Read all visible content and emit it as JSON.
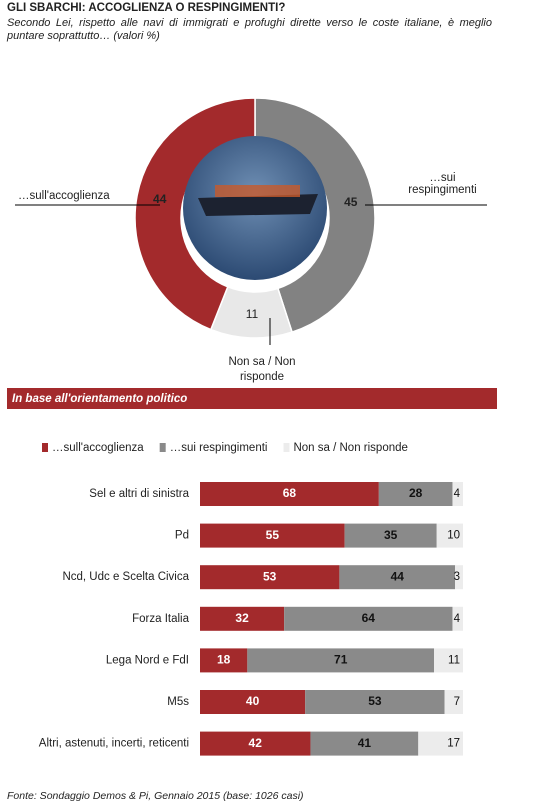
{
  "title": "GLI SBARCHI: ACCOGLIENZA  O RESPINGIMENTI?",
  "subtitle": "Secondo Lei, rispetto alle navi di immigrati e profughi dirette verso le coste italiane, è meglio puntare soprattutto… (valori %)",
  "source": "Fonte: Sondaggio Demos & Pi, Gennaio 2015 (base: 1026 casi)",
  "chart_data": [
    {
      "type": "donut",
      "categories": [
        "…sull'accoglienza",
        "…sui respingimenti",
        "Non sa / Non risponde"
      ],
      "values": [
        44,
        45,
        11
      ],
      "colors": [
        "#a32a2c",
        "#828282",
        "#e8e8e8"
      ]
    },
    {
      "type": "stacked-bar",
      "title": "In base all'orientamento politico",
      "categories": [
        "Sel e altri di sinistra",
        "Pd",
        "Ncd, Udc e Scelta Civica",
        "Forza Italia",
        "Lega Nord e FdI",
        "M5s",
        "Altri, astenuti, incerti, reticenti"
      ],
      "series": [
        {
          "name": "…sull'accoglienza",
          "color": "#a32a2c",
          "values": [
            68,
            55,
            53,
            32,
            18,
            40,
            42
          ]
        },
        {
          "name": "…sui respingimenti",
          "color": "#8a8a8a",
          "values": [
            28,
            35,
            44,
            64,
            71,
            53,
            41
          ]
        },
        {
          "name": "Non sa / Non risponde",
          "color": "#ececec",
          "values": [
            4,
            10,
            3,
            4,
            11,
            7,
            17
          ]
        }
      ]
    }
  ]
}
